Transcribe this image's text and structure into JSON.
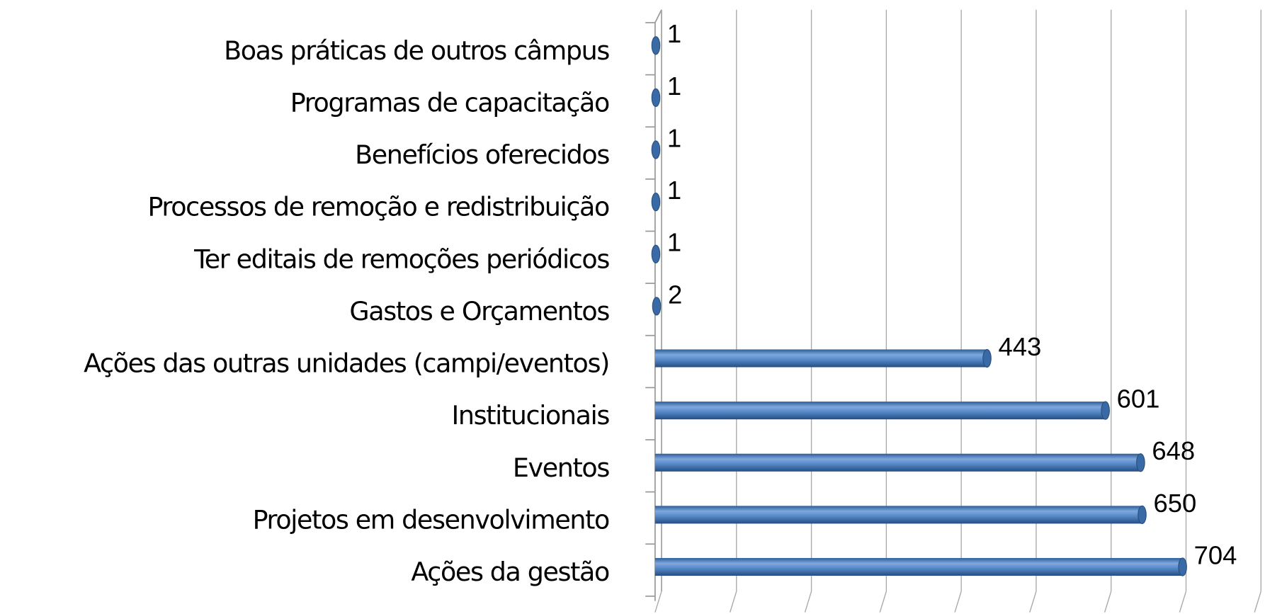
{
  "chart_data": {
    "type": "bar",
    "orientation": "horizontal",
    "categories": [
      "Boas práticas de outros câmpus",
      "Programas de capacitação",
      "Benefícios oferecidos",
      "Processos de remoção e redistribuição",
      "Ter editais de remoções periódicos",
      "Gastos e Orçamentos",
      "Ações das outras unidades (campi/eventos)",
      "Institucionais",
      "Eventos",
      "Projetos em desenvolvimento",
      "Ações da gestão"
    ],
    "values": [
      1,
      1,
      1,
      1,
      1,
      2,
      443,
      601,
      648,
      650,
      704
    ],
    "color": "#4a7ebb",
    "xlim": [
      0,
      800
    ],
    "xticks": [
      0,
      100,
      200,
      300,
      400,
      500,
      600,
      700,
      800
    ],
    "grid": true
  }
}
